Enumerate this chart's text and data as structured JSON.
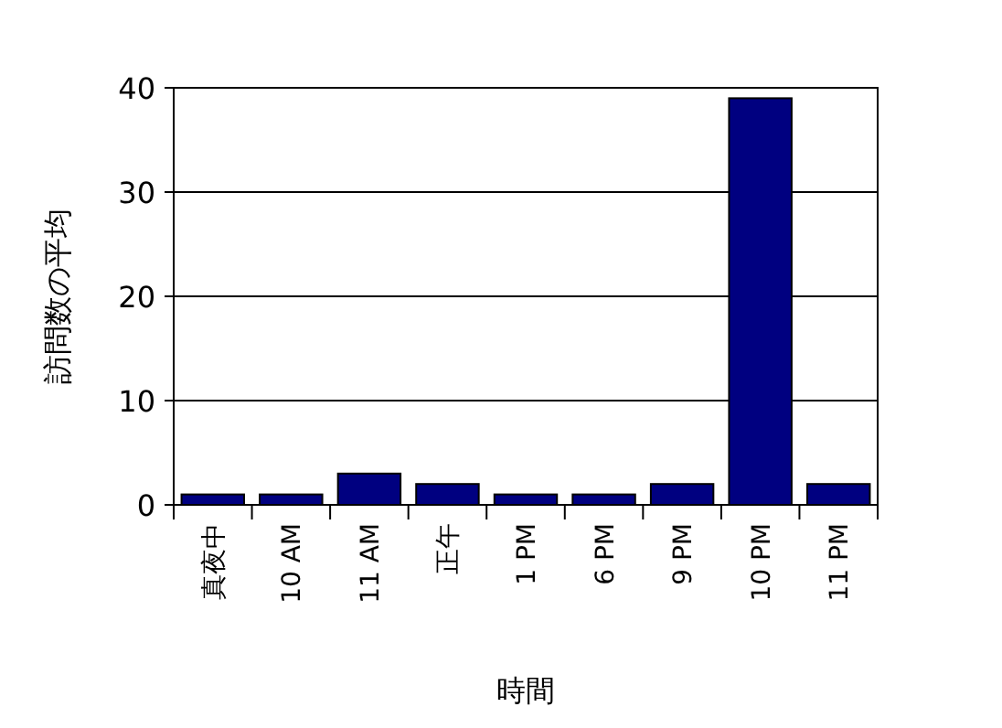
{
  "chart_data": {
    "type": "bar",
    "xlabel": "時間",
    "ylabel": "訪問数の平均",
    "categories": [
      "真夜中",
      "10 AM",
      "11 AM",
      "正午",
      "1 PM",
      "6 PM",
      "9 PM",
      "10 PM",
      "11 PM"
    ],
    "values": [
      1,
      1,
      3,
      2,
      1,
      1,
      2,
      39,
      2
    ],
    "color": "#000080",
    "ylim": [
      0,
      40
    ],
    "yticks": [
      0,
      10,
      20,
      30,
      40
    ],
    "grid": "y"
  }
}
